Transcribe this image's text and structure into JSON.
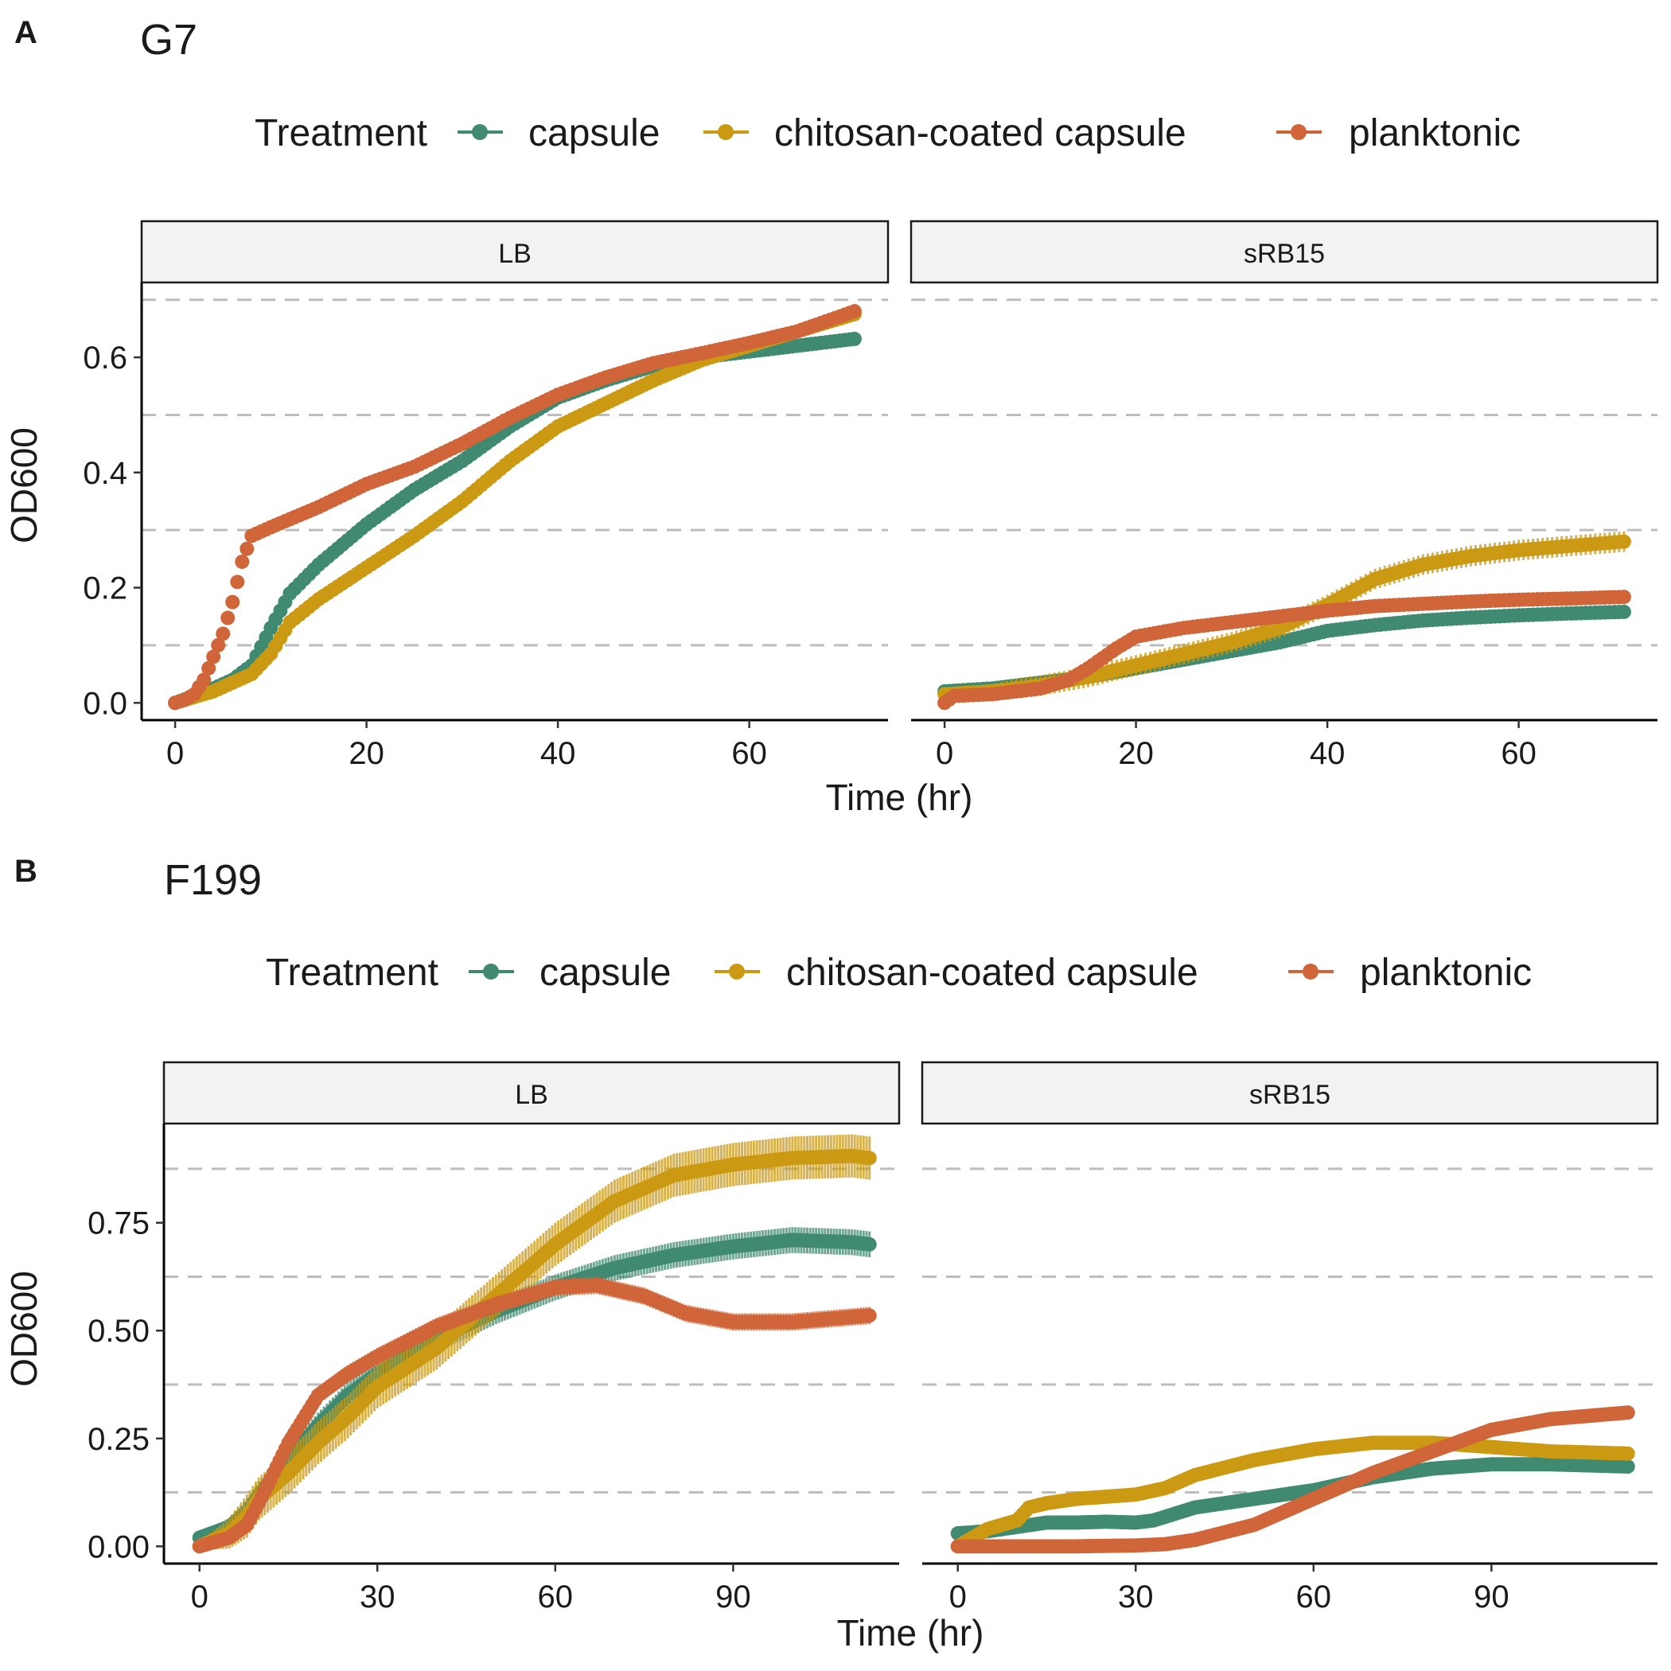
{
  "legend": {
    "title": "Treatment",
    "items": [
      {
        "label": "capsule",
        "color": "#3f8a70"
      },
      {
        "label": "chitosan-coated capsule",
        "color": "#cc9a12"
      },
      {
        "label": "planktonic",
        "color": "#cf6538"
      }
    ]
  },
  "panels": [
    {
      "letter": "A",
      "title": "G7",
      "xlabel": "Time (hr)",
      "ylabel": "OD600",
      "strips": [
        "LB",
        "sRB15"
      ],
      "xlim": [
        -3.5,
        74.5
      ],
      "xticks": [
        0,
        20,
        40,
        60
      ],
      "ylim": [
        -0.03,
        0.73
      ],
      "yticks": [
        0.0,
        0.2,
        0.4,
        0.6
      ],
      "ytick_labels": [
        "0.0",
        "0.2",
        "0.4",
        "0.6"
      ],
      "ref_lines": [
        0.1,
        0.3,
        0.5,
        0.7
      ],
      "tmax": 71
    },
    {
      "letter": "B",
      "title": "F199",
      "xlabel": "Time (hr)",
      "ylabel": "OD600",
      "strips": [
        "LB",
        "sRB15"
      ],
      "xlim": [
        -6,
        118
      ],
      "xticks": [
        0,
        30,
        60,
        90
      ],
      "ylim": [
        -0.04,
        0.98
      ],
      "yticks": [
        0.0,
        0.25,
        0.5,
        0.75
      ],
      "ytick_labels": [
        "0.00",
        "0.25",
        "0.50",
        "0.75"
      ],
      "ref_lines": [
        0.125,
        0.375,
        0.625,
        0.875
      ],
      "tmax": 113
    }
  ],
  "chart_data": [
    {
      "type": "scatter",
      "title": "G7",
      "facet": "LB",
      "xlabel": "Time (hr)",
      "ylabel": "OD600",
      "series": [
        {
          "name": "capsule",
          "points": [
            [
              0,
              0
            ],
            [
              2,
              0.012
            ],
            [
              4,
              0.025
            ],
            [
              6,
              0.04
            ],
            [
              8,
              0.065
            ],
            [
              10,
              0.13
            ],
            [
              12,
              0.19
            ],
            [
              15,
              0.24
            ],
            [
              20,
              0.31
            ],
            [
              25,
              0.37
            ],
            [
              30,
              0.42
            ],
            [
              35,
              0.48
            ],
            [
              40,
              0.53
            ],
            [
              45,
              0.56
            ],
            [
              50,
              0.585
            ],
            [
              55,
              0.6
            ],
            [
              60,
              0.61
            ],
            [
              65,
              0.62
            ],
            [
              71,
              0.632
            ]
          ],
          "err": 0.006
        },
        {
          "name": "chitosan-coated capsule",
          "points": [
            [
              0,
              0
            ],
            [
              2,
              0.01
            ],
            [
              4,
              0.02
            ],
            [
              6,
              0.035
            ],
            [
              8,
              0.05
            ],
            [
              10,
              0.085
            ],
            [
              12,
              0.14
            ],
            [
              15,
              0.18
            ],
            [
              20,
              0.235
            ],
            [
              25,
              0.29
            ],
            [
              30,
              0.35
            ],
            [
              35,
              0.42
            ],
            [
              40,
              0.48
            ],
            [
              45,
              0.52
            ],
            [
              50,
              0.56
            ],
            [
              55,
              0.595
            ],
            [
              60,
              0.62
            ],
            [
              65,
              0.645
            ],
            [
              71,
              0.675
            ]
          ],
          "err": 0.006
        },
        {
          "name": "planktonic",
          "points": [
            [
              0,
              0
            ],
            [
              1,
              0.005
            ],
            [
              2,
              0.015
            ],
            [
              3,
              0.04
            ],
            [
              4,
              0.08
            ],
            [
              5,
              0.12
            ],
            [
              6,
              0.175
            ],
            [
              7,
              0.245
            ],
            [
              8,
              0.29
            ],
            [
              10,
              0.305
            ],
            [
              15,
              0.34
            ],
            [
              20,
              0.38
            ],
            [
              25,
              0.41
            ],
            [
              30,
              0.45
            ],
            [
              35,
              0.495
            ],
            [
              40,
              0.535
            ],
            [
              45,
              0.565
            ],
            [
              50,
              0.59
            ],
            [
              55,
              0.607
            ],
            [
              60,
              0.625
            ],
            [
              65,
              0.645
            ],
            [
              71,
              0.68
            ]
          ],
          "err": 0.006
        }
      ]
    },
    {
      "type": "scatter",
      "title": "G7",
      "facet": "sRB15",
      "xlabel": "Time (hr)",
      "ylabel": "OD600",
      "series": [
        {
          "name": "capsule",
          "points": [
            [
              0,
              0.02
            ],
            [
              5,
              0.025
            ],
            [
              10,
              0.035
            ],
            [
              15,
              0.045
            ],
            [
              20,
              0.06
            ],
            [
              25,
              0.075
            ],
            [
              30,
              0.09
            ],
            [
              35,
              0.105
            ],
            [
              40,
              0.125
            ],
            [
              45,
              0.135
            ],
            [
              50,
              0.143
            ],
            [
              55,
              0.148
            ],
            [
              60,
              0.152
            ],
            [
              65,
              0.155
            ],
            [
              71,
              0.158
            ]
          ],
          "err": 0.004
        },
        {
          "name": "chitosan-coated capsule",
          "points": [
            [
              0,
              0.015
            ],
            [
              5,
              0.02
            ],
            [
              10,
              0.03
            ],
            [
              15,
              0.045
            ],
            [
              20,
              0.065
            ],
            [
              25,
              0.085
            ],
            [
              30,
              0.105
            ],
            [
              35,
              0.13
            ],
            [
              40,
              0.17
            ],
            [
              45,
              0.215
            ],
            [
              50,
              0.24
            ],
            [
              55,
              0.255
            ],
            [
              60,
              0.265
            ],
            [
              65,
              0.272
            ],
            [
              71,
              0.28
            ]
          ],
          "err": 0.018
        },
        {
          "name": "planktonic",
          "points": [
            [
              0,
              0
            ],
            [
              1,
              0.012
            ],
            [
              5,
              0.015
            ],
            [
              10,
              0.025
            ],
            [
              13,
              0.04
            ],
            [
              15,
              0.06
            ],
            [
              18,
              0.095
            ],
            [
              20,
              0.115
            ],
            [
              25,
              0.13
            ],
            [
              30,
              0.14
            ],
            [
              35,
              0.15
            ],
            [
              40,
              0.16
            ],
            [
              45,
              0.168
            ],
            [
              50,
              0.172
            ],
            [
              55,
              0.176
            ],
            [
              60,
              0.179
            ],
            [
              65,
              0.181
            ],
            [
              71,
              0.184
            ]
          ],
          "err": 0.004
        }
      ]
    },
    {
      "type": "scatter",
      "title": "F199",
      "facet": "LB",
      "xlabel": "Time (hr)",
      "ylabel": "OD600",
      "series": [
        {
          "name": "capsule",
          "points": [
            [
              0,
              0.02
            ],
            [
              5,
              0.045
            ],
            [
              8,
              0.08
            ],
            [
              10,
              0.12
            ],
            [
              15,
              0.2
            ],
            [
              20,
              0.28
            ],
            [
              25,
              0.35
            ],
            [
              30,
              0.4
            ],
            [
              40,
              0.48
            ],
            [
              50,
              0.545
            ],
            [
              60,
              0.6
            ],
            [
              70,
              0.645
            ],
            [
              80,
              0.675
            ],
            [
              90,
              0.695
            ],
            [
              100,
              0.71
            ],
            [
              110,
              0.705
            ],
            [
              113,
              0.7
            ]
          ],
          "err": 0.03
        },
        {
          "name": "chitosan-coated capsule",
          "points": [
            [
              0,
              0
            ],
            [
              5,
              0.03
            ],
            [
              8,
              0.07
            ],
            [
              10,
              0.11
            ],
            [
              15,
              0.17
            ],
            [
              20,
              0.24
            ],
            [
              25,
              0.3
            ],
            [
              30,
              0.37
            ],
            [
              40,
              0.46
            ],
            [
              50,
              0.58
            ],
            [
              60,
              0.7
            ],
            [
              70,
              0.8
            ],
            [
              80,
              0.86
            ],
            [
              90,
              0.885
            ],
            [
              100,
              0.9
            ],
            [
              110,
              0.905
            ],
            [
              113,
              0.9
            ]
          ],
          "err": 0.05
        },
        {
          "name": "planktonic",
          "points": [
            [
              0,
              0
            ],
            [
              5,
              0.02
            ],
            [
              8,
              0.05
            ],
            [
              10,
              0.1
            ],
            [
              15,
              0.24
            ],
            [
              20,
              0.35
            ],
            [
              25,
              0.4
            ],
            [
              30,
              0.44
            ],
            [
              40,
              0.51
            ],
            [
              50,
              0.56
            ],
            [
              60,
              0.6
            ],
            [
              67,
              0.605
            ],
            [
              75,
              0.58
            ],
            [
              82,
              0.54
            ],
            [
              90,
              0.52
            ],
            [
              100,
              0.52
            ],
            [
              113,
              0.535
            ]
          ],
          "err": 0.02
        }
      ]
    },
    {
      "type": "scatter",
      "title": "F199",
      "facet": "sRB15",
      "xlabel": "Time (hr)",
      "ylabel": "OD600",
      "series": [
        {
          "name": "capsule",
          "points": [
            [
              0,
              0.03
            ],
            [
              5,
              0.035
            ],
            [
              10,
              0.045
            ],
            [
              15,
              0.055
            ],
            [
              20,
              0.055
            ],
            [
              25,
              0.057
            ],
            [
              30,
              0.055
            ],
            [
              33,
              0.06
            ],
            [
              40,
              0.09
            ],
            [
              50,
              0.11
            ],
            [
              60,
              0.13
            ],
            [
              70,
              0.16
            ],
            [
              80,
              0.18
            ],
            [
              90,
              0.19
            ],
            [
              100,
              0.19
            ],
            [
              113,
              0.185
            ]
          ],
          "err": 0.008
        },
        {
          "name": "chitosan-coated capsule",
          "points": [
            [
              0,
              0
            ],
            [
              5,
              0.04
            ],
            [
              10,
              0.06
            ],
            [
              12,
              0.09
            ],
            [
              15,
              0.1
            ],
            [
              20,
              0.11
            ],
            [
              25,
              0.115
            ],
            [
              30,
              0.12
            ],
            [
              35,
              0.135
            ],
            [
              40,
              0.165
            ],
            [
              50,
              0.2
            ],
            [
              60,
              0.225
            ],
            [
              70,
              0.24
            ],
            [
              80,
              0.24
            ],
            [
              90,
              0.23
            ],
            [
              100,
              0.22
            ],
            [
              113,
              0.215
            ]
          ],
          "err": 0.008
        },
        {
          "name": "planktonic",
          "points": [
            [
              0,
              0
            ],
            [
              10,
              0
            ],
            [
              20,
              0
            ],
            [
              30,
              0.002
            ],
            [
              35,
              0.005
            ],
            [
              40,
              0.015
            ],
            [
              50,
              0.05
            ],
            [
              60,
              0.11
            ],
            [
              70,
              0.17
            ],
            [
              80,
              0.22
            ],
            [
              90,
              0.27
            ],
            [
              100,
              0.295
            ],
            [
              113,
              0.31
            ]
          ],
          "err": 0.006
        }
      ]
    }
  ]
}
